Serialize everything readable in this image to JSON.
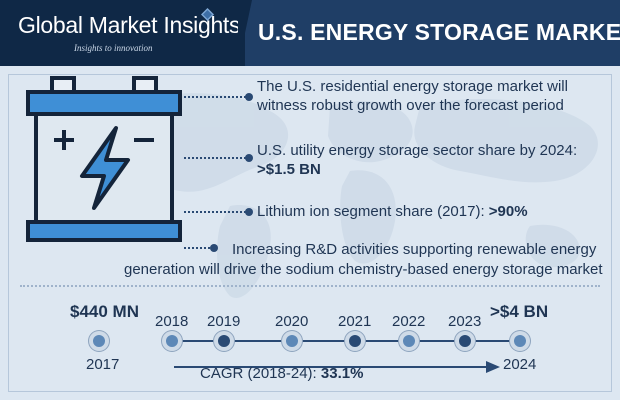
{
  "header": {
    "brand": "Global Market Insights",
    "tagline": "Insights to innovation",
    "title": "U.S. ENERGY STORAGE MARKET"
  },
  "points": [
    {
      "text_line1": "The U.S. residential energy storage market will",
      "text_line2": "witness robust growth over the forecast period"
    },
    {
      "text_line1": "U.S. utility energy storage sector share by 2024:",
      "value": ">$1.5 BN"
    },
    {
      "text": "Lithium ion segment share (2017):",
      "value": ">90%"
    },
    {
      "text_line1": "Increasing R&D activities supporting renewable energy",
      "text_line2": "generation will drive the sodium chemistry-based energy storage market"
    }
  ],
  "timeline": {
    "start_value": "$440 MN",
    "start_year": "2017",
    "end_value": ">$4 BN",
    "end_year": "2024",
    "years": [
      "2018",
      "2019",
      "2020",
      "2021",
      "2022",
      "2023"
    ],
    "cagr_label": "CAGR (2018-24):",
    "cagr_value": "33.1%"
  },
  "colors": {
    "navy": "#1f3e66",
    "dark_navy": "#0f2846",
    "background": "#dde7f1",
    "text": "#1f3553"
  },
  "icons": [
    "battery-icon",
    "lightning-bolt-icon",
    "diamond-logo-icon"
  ]
}
